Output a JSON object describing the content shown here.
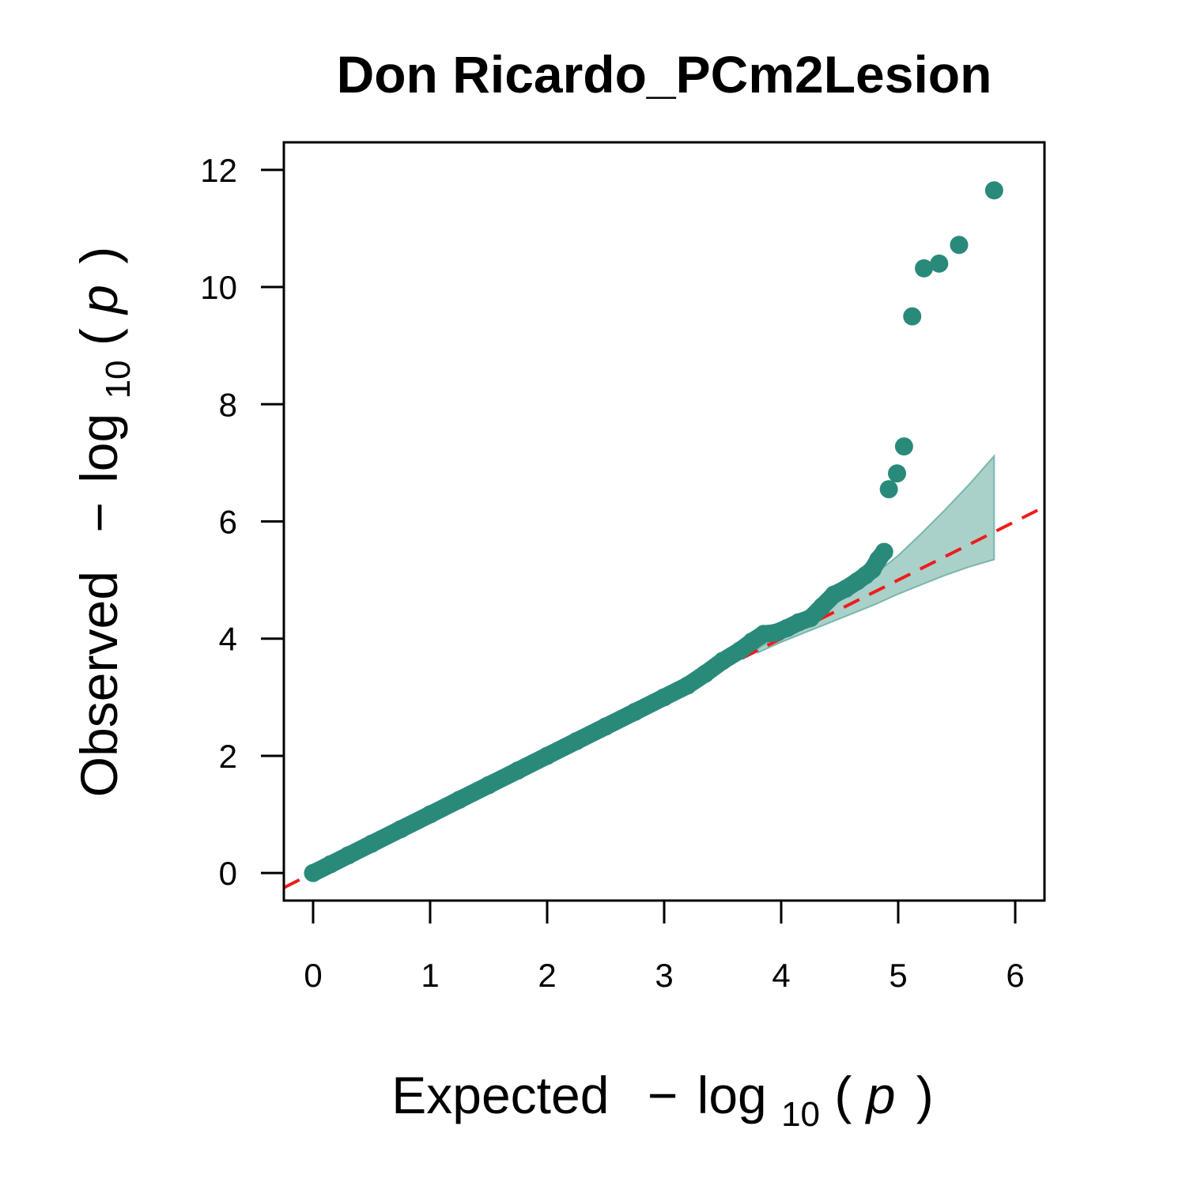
{
  "chart_data": {
    "type": "scatter",
    "title": "Don Ricardo_PCm2Lesion",
    "xlabel": {
      "text": "Expected",
      "minus": "−",
      "log": "log",
      "base": "10",
      "open": "(",
      "var": "p",
      "close": ")"
    },
    "ylabel": {
      "text": "Observed",
      "minus": "−",
      "log": "log",
      "base": "10",
      "open": "(",
      "var": "p",
      "close": ")"
    },
    "xlim": [
      -0.25,
      6.25
    ],
    "ylim": [
      -0.47,
      12.47
    ],
    "xticks": [
      0,
      1,
      2,
      3,
      4,
      5,
      6
    ],
    "xtick_labels": [
      "0",
      "1",
      "2",
      "3",
      "4",
      "5",
      "6"
    ],
    "yticks": [
      0,
      2,
      4,
      6,
      8,
      10,
      12
    ],
    "ytick_labels": [
      "0",
      "2",
      "4",
      "6",
      "8",
      "10",
      "12"
    ],
    "grid": false,
    "point_color": "#2a8a7a",
    "band_color": "#2a8a7a",
    "reference_line_color": "#ee1c1c",
    "reference_line": {
      "slope": 1,
      "intercept": 0,
      "style": "dashed"
    },
    "confidence_band": {
      "x": [
        3.8,
        4.0,
        4.2,
        4.4,
        4.6,
        4.8,
        5.0,
        5.2,
        5.4,
        5.6,
        5.82
      ],
      "upper": [
        3.84,
        4.06,
        4.3,
        4.56,
        4.82,
        5.1,
        5.42,
        5.8,
        6.2,
        6.62,
        7.12
      ],
      "lower": [
        3.76,
        3.94,
        4.1,
        4.26,
        4.42,
        4.58,
        4.76,
        4.92,
        5.08,
        5.22,
        5.35
      ]
    },
    "series": [
      {
        "x": [
          0.0,
          0.15,
          0.3,
          0.5,
          0.75,
          1.0,
          1.25,
          1.5,
          1.75,
          2.0,
          2.25,
          2.5,
          2.75,
          3.0,
          3.2,
          3.35,
          3.5,
          3.65,
          3.75,
          3.85,
          3.95,
          4.05,
          4.15,
          4.25,
          4.35,
          4.45,
          4.55,
          4.65,
          4.72,
          4.78,
          4.83,
          4.88
        ],
        "y": [
          0.0,
          0.15,
          0.3,
          0.5,
          0.75,
          1.0,
          1.25,
          1.5,
          1.75,
          2.0,
          2.25,
          2.5,
          2.75,
          3.0,
          3.2,
          3.4,
          3.62,
          3.8,
          3.95,
          4.08,
          4.1,
          4.18,
          4.28,
          4.35,
          4.55,
          4.75,
          4.85,
          4.98,
          5.08,
          5.18,
          5.35,
          5.48
        ]
      },
      {
        "x": [
          4.92,
          4.99,
          5.05,
          5.12,
          5.22,
          5.35,
          5.52,
          5.82
        ],
        "y": [
          6.55,
          6.82,
          7.28,
          9.5,
          10.32,
          10.4,
          10.72,
          11.65
        ]
      }
    ]
  }
}
